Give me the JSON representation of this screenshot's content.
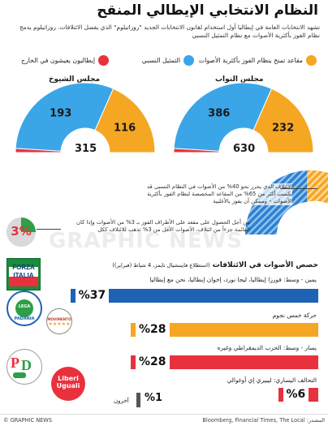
{
  "title": "النظام الانتخابي الإيطالي المنقح",
  "intro": "تشهد الانتخابات العامة في إيطاليا أول استخدام لقانون الانتخابات الجديد \"روزاتيلوم\" الذي يفضل الائتلافات. روزاتيلوم يدمج نظام الفوز بأكثرية الأصوات مع نظام التمثيل النسبي",
  "legend": [
    {
      "label": "مقاعد تمنح بنظام الفوز بأكثرية الأصوات",
      "color": "#f5a623"
    },
    {
      "label": "التمثيل النسبي",
      "color": "#3aa6e8"
    },
    {
      "label": "إيطاليون يعيشون في الخارج",
      "color": "#e8313d"
    }
  ],
  "chart_data": [
    {
      "type": "pie",
      "title": "مجلس النواب",
      "total": "630",
      "categories": [
        "مقاعد تمنح بنظام الفوز بأكثرية الأصوات",
        "التمثيل النسبي",
        "إيطاليون يعيشون في الخارج"
      ],
      "values": [
        232,
        386,
        12
      ]
    },
    {
      "type": "pie",
      "title": "مجلس الشيوخ",
      "total": "315",
      "categories": [
        "مقاعد تمنح بنظام الفوز بأكثرية الأصوات",
        "التمثيل النسبي",
        "إيطاليون يعيشون في الخارج"
      ],
      "values": [
        116,
        193,
        6
      ]
    },
    {
      "type": "bar",
      "title": "حصص الأصوات في الائتلافات",
      "subtitle": "(استطلاع فايننشيال تايمز، 4 شباط (فبراير))",
      "categories": [
        "يمين - وسط: فورزا إيطاليا، ليجا نورد، إخوان إيطاليا، نحن مع إيطاليا",
        "حركة خمس نجوم",
        "يسار - وسط: الحزب الديمقراطي وغيره",
        "التحالف اليساري: ليبيري إي أوغوالي",
        "آخرون"
      ],
      "values": [
        37,
        28,
        28,
        6,
        1
      ],
      "labels": [
        "%37",
        "%28",
        "%28",
        "%6",
        "%1"
      ],
      "colors": [
        "#1d62b3",
        "#f5a623",
        "#e8313d",
        "#e8313d",
        "#555555"
      ],
      "xlim": [
        0,
        40
      ]
    }
  ],
  "annotations": {
    "threshold_majority": "الائتلاف الذي يحرز نحو 40% من الأصوات في النظام النسبي قد يكسب أكثر من 65% من المقاعد المخصصة لنظام الفوز بأكثرية الأصوات – وممكن أن يفوز بالأغلبية",
    "threshold_3": "من أجل الحصول على مقعد على الأطراف الفوز بـ 3% من الأصوات وإذا كان القائمة جزءاً من ائتلاف، الأصوات الأقل من 3% تذهب للائتلاف ككل",
    "threshold_big": "3%"
  },
  "logos": {
    "forza": "FORZA ITALIA",
    "lega": "LEGA NORD PADANIA",
    "m5s": "MOVIMENTO",
    "pd": "PD",
    "leu": "Liberi Uguali"
  },
  "footer": {
    "credit": "© GRAPHIC NEWS",
    "source": "المصدر: Bloomberg, Financial Times, The Local"
  },
  "watermark": "GRAPHIC NEWS"
}
